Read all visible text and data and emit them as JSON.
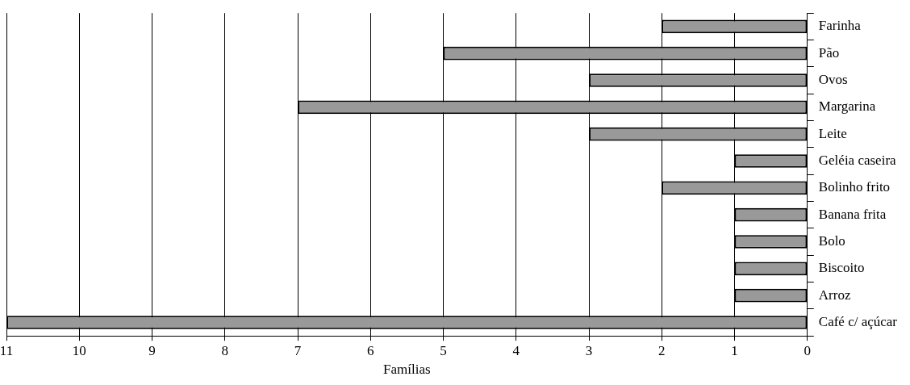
{
  "chart_data": {
    "type": "bar",
    "orientation": "horizontal",
    "xlabel": "Famílias",
    "categories": [
      "Farinha",
      "Pão",
      "Ovos",
      "Margarina",
      "Leite",
      "Geléia caseira",
      "Bolinho frito",
      "Banana frita",
      "Bolo",
      "Biscoito",
      "Arroz",
      "Café c/ açúcar"
    ],
    "values": [
      2,
      5,
      3,
      7,
      3,
      1,
      2,
      1,
      1,
      1,
      1,
      11
    ],
    "color": "#999999",
    "xlim": [
      11,
      0
    ],
    "xticks": [
      0,
      1,
      2,
      3,
      4,
      5,
      6,
      7,
      8,
      9,
      10,
      11
    ],
    "grid": "x",
    "legend": false
  }
}
